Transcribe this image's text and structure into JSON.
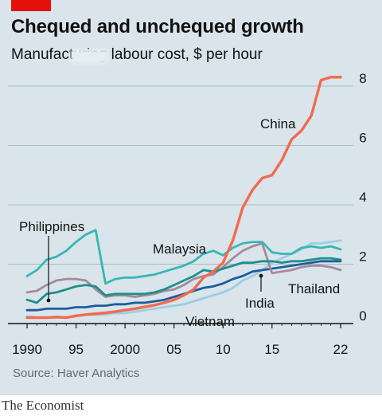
{
  "header": {
    "title": "Chequed and unchequed growth",
    "subtitle": "Manufacturing labour cost, $ per hour"
  },
  "source": "Source: Haver Analytics",
  "brand": "The Economist",
  "colors": {
    "background": "#d9e5eb",
    "accent_red": "#e3120b",
    "China": "#f26a4f",
    "Philippines": "#36b7b4",
    "Malaysia": "#1f8f8a",
    "Thailand": "#a58a9b",
    "India": "#1d5c9e",
    "Vietnam": "#9fcde4"
  },
  "chart_data": {
    "type": "line",
    "title": "Chequed and unchequed growth",
    "subtitle": "Manufacturing labour cost, $ per hour",
    "xlim": [
      1990,
      2022
    ],
    "ylim": [
      0,
      8
    ],
    "x_ticks": [
      "1990",
      "95",
      "2000",
      "05",
      "10",
      "15",
      "22"
    ],
    "x_tick_values": [
      1990,
      1995,
      2000,
      2005,
      2010,
      2015,
      2022
    ],
    "y_ticks": [
      0,
      2,
      4,
      6,
      8
    ],
    "y_axis_side": "right",
    "grid": "horizontal",
    "legend": "inline labels",
    "series": [
      {
        "name": "China",
        "x": [
          1990,
          1991,
          1992,
          1993,
          1994,
          1995,
          1996,
          1997,
          1998,
          1999,
          2000,
          2001,
          2002,
          2003,
          2004,
          2005,
          2006,
          2007,
          2008,
          2009,
          2010,
          2011,
          2012,
          2013,
          2014,
          2015,
          2016,
          2017,
          2018,
          2019,
          2020,
          2021,
          2022
        ],
        "values": [
          0.2,
          0.2,
          0.2,
          0.22,
          0.2,
          0.26,
          0.3,
          0.33,
          0.36,
          0.4,
          0.45,
          0.5,
          0.56,
          0.62,
          0.7,
          0.8,
          0.95,
          1.15,
          1.55,
          1.75,
          2.05,
          2.8,
          3.9,
          4.5,
          4.9,
          5.0,
          5.5,
          6.2,
          6.5,
          7.0,
          8.2,
          8.3,
          8.3
        ]
      },
      {
        "name": "Philippines",
        "x": [
          1990,
          1991,
          1992,
          1993,
          1994,
          1995,
          1996,
          1997,
          1998,
          1999,
          2000,
          2001,
          2002,
          2003,
          2004,
          2005,
          2006,
          2007,
          2008,
          2009,
          2010,
          2011,
          2012,
          2013,
          2014,
          2015,
          2016,
          2017,
          2018,
          2019,
          2020,
          2021,
          2022
        ],
        "values": [
          1.6,
          1.8,
          2.15,
          2.25,
          2.45,
          2.75,
          3.0,
          3.15,
          1.35,
          1.5,
          1.55,
          1.55,
          1.6,
          1.65,
          1.75,
          1.85,
          1.95,
          2.1,
          2.35,
          2.45,
          2.3,
          2.55,
          2.7,
          2.75,
          2.75,
          2.4,
          2.35,
          2.35,
          2.55,
          2.6,
          2.55,
          2.6,
          2.5
        ]
      },
      {
        "name": "Malaysia",
        "x": [
          1990,
          1991,
          1992,
          1993,
          1994,
          1995,
          1996,
          1997,
          1998,
          1999,
          2000,
          2001,
          2002,
          2003,
          2004,
          2005,
          2006,
          2007,
          2008,
          2009,
          2010,
          2011,
          2012,
          2013,
          2014,
          2015,
          2016,
          2017,
          2018,
          2019,
          2020,
          2021,
          2022
        ],
        "values": [
          0.8,
          0.7,
          1.0,
          1.05,
          1.15,
          1.25,
          1.3,
          1.25,
          0.95,
          1.0,
          1.0,
          1.0,
          1.0,
          1.05,
          1.15,
          1.3,
          1.45,
          1.6,
          1.8,
          1.75,
          1.85,
          1.95,
          2.05,
          2.05,
          2.1,
          2.1,
          2.05,
          2.1,
          2.1,
          2.15,
          2.2,
          2.2,
          2.15
        ]
      },
      {
        "name": "Thailand",
        "x": [
          1990,
          1991,
          1992,
          1993,
          1994,
          1995,
          1996,
          1997,
          1998,
          1999,
          2000,
          2001,
          2002,
          2003,
          2004,
          2005,
          2006,
          2007,
          2008,
          2009,
          2010,
          2011,
          2012,
          2013,
          2014,
          2015,
          2016,
          2017,
          2018,
          2019,
          2020,
          2021,
          2022
        ],
        "values": [
          1.05,
          1.1,
          1.3,
          1.45,
          1.5,
          1.5,
          1.45,
          1.15,
          0.9,
          0.95,
          0.95,
          0.9,
          0.95,
          1.0,
          1.1,
          1.15,
          1.3,
          1.5,
          1.6,
          1.65,
          1.9,
          2.2,
          2.45,
          2.6,
          2.7,
          1.7,
          1.75,
          1.8,
          1.9,
          1.95,
          1.95,
          1.9,
          1.8
        ]
      },
      {
        "name": "India",
        "x": [
          1990,
          1991,
          1992,
          1993,
          1994,
          1995,
          1996,
          1997,
          1998,
          1999,
          2000,
          2001,
          2002,
          2003,
          2004,
          2005,
          2006,
          2007,
          2008,
          2009,
          2010,
          2011,
          2012,
          2013,
          2014,
          2015,
          2016,
          2017,
          2018,
          2019,
          2020,
          2021,
          2022
        ],
        "values": [
          0.45,
          0.45,
          0.5,
          0.5,
          0.5,
          0.55,
          0.55,
          0.6,
          0.6,
          0.65,
          0.65,
          0.7,
          0.7,
          0.75,
          0.8,
          0.9,
          1.0,
          1.1,
          1.2,
          1.25,
          1.35,
          1.5,
          1.6,
          1.75,
          1.8,
          1.85,
          1.9,
          1.95,
          2.0,
          2.05,
          2.1,
          2.1,
          2.1
        ]
      },
      {
        "name": "Vietnam",
        "x": [
          1990,
          1991,
          1992,
          1993,
          1994,
          1995,
          1996,
          1997,
          1998,
          1999,
          2000,
          2001,
          2002,
          2003,
          2004,
          2005,
          2006,
          2007,
          2008,
          2009,
          2010,
          2011,
          2012,
          2013,
          2014,
          2015,
          2016,
          2017,
          2018,
          2019,
          2020,
          2021,
          2022
        ],
        "values": [
          0.25,
          0.2,
          0.2,
          0.2,
          0.2,
          0.25,
          0.3,
          0.3,
          0.3,
          0.35,
          0.35,
          0.4,
          0.45,
          0.5,
          0.55,
          0.6,
          0.65,
          0.75,
          0.85,
          0.95,
          1.05,
          1.2,
          1.45,
          1.6,
          1.8,
          2.05,
          2.2,
          2.35,
          2.5,
          2.7,
          2.7,
          2.75,
          2.8
        ]
      }
    ],
    "annotations": [
      "China",
      "Philippines",
      "Malaysia",
      "Thailand",
      "India",
      "Vietnam"
    ]
  }
}
